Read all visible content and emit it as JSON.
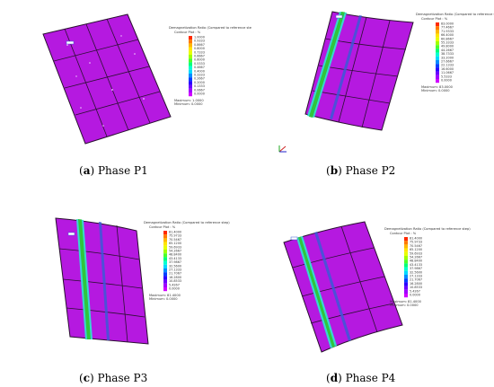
{
  "figure": {
    "panels": [
      {
        "id": "a",
        "caption_label": "a",
        "caption_text": "Phase P1",
        "legend_title": "Demagnetization Ratio (Compared to reference step)",
        "legend_subtitle": "Contour Plot : %",
        "legend_values": [
          "1.0000",
          "0.9333",
          "0.8667",
          "0.8000",
          "0.7333",
          "0.6667",
          "0.6000",
          "0.5333",
          "0.4667",
          "0.4000",
          "0.3333",
          "0.2667",
          "0.2000",
          "0.1333",
          "0.0667",
          "0.0000"
        ],
        "maximum": "Maximum: 1.0000",
        "minimum": "Minimum: 0.0000"
      },
      {
        "id": "b",
        "caption_label": "b",
        "caption_text": "Phase P2",
        "legend_title": "Demagnetization Ratio (Compared to reference step)",
        "legend_subtitle": "Contour Plot : %",
        "legend_values": [
          "83.0000",
          "77.4667",
          "71.9333",
          "66.4000",
          "60.8667",
          "55.3333",
          "49.8000",
          "44.2667",
          "38.7333",
          "33.2000",
          "27.6667",
          "22.1333",
          "16.6000",
          "11.0667",
          "5.5333",
          "0.0000"
        ],
        "maximum": "Maximum: 83.0000",
        "minimum": "Minimum: 0.0000"
      },
      {
        "id": "c",
        "caption_label": "c",
        "caption_text": "Phase P3",
        "legend_title": "Demagnetization Ratio (Compared to reference step)",
        "legend_subtitle": "Contour Plot : %",
        "legend_values": [
          "81.4000",
          "75.9733",
          "70.5467",
          "65.1200",
          "59.6933",
          "54.2667",
          "48.8400",
          "43.4133",
          "37.9867",
          "32.5600",
          "27.1333",
          "21.7067",
          "16.2800",
          "10.8533",
          "5.4267",
          "0.0000"
        ],
        "maximum": "Maximum: 81.4000",
        "minimum": "Minimum: 0.0000"
      },
      {
        "id": "d",
        "caption_label": "d",
        "caption_text": "Phase P4",
        "legend_title": "Demagnetization Ratio (Compared to reference step)",
        "legend_subtitle": "Contour Plot : %",
        "legend_values": [
          "81.4000",
          "75.9733",
          "70.5467",
          "65.1200",
          "59.6933",
          "54.2667",
          "48.8400",
          "43.4133",
          "37.9867",
          "32.5600",
          "27.1333",
          "21.7067",
          "16.2800",
          "10.8533",
          "5.4267",
          "0.0000"
        ],
        "maximum": "Maximum: 81.4000",
        "minimum": "Minimum: 0.0000"
      }
    ],
    "colors": {
      "magnet_fill": "#b519e0",
      "stripe_hot": "#39d7d2",
      "stripe_core": "#2fc63c",
      "stripe_blue": "#3b5bd6",
      "grid_line": "#2a1030",
      "scale": [
        "#ff2a00",
        "#ff7a00",
        "#ffb800",
        "#ffe600",
        "#e6ff00",
        "#a0ff00",
        "#4cff2a",
        "#00ff7a",
        "#00ffd0",
        "#00d9ff",
        "#008cff",
        "#0040ff",
        "#2a00ff",
        "#6a00ff",
        "#a000ff",
        "#d000ff"
      ]
    }
  }
}
